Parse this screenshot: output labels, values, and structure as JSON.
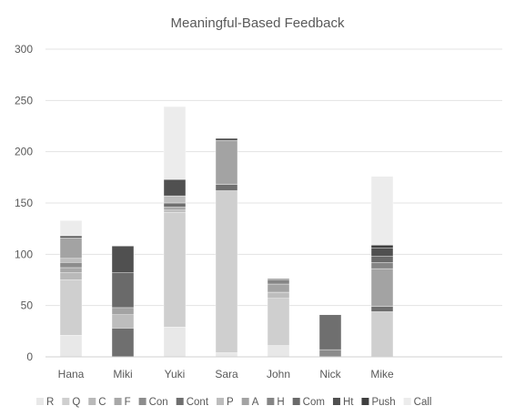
{
  "chart_data": {
    "type": "bar",
    "stacked": true,
    "title": "Meaningful-Based Feedback",
    "xlabel": "",
    "ylabel": "",
    "ylim": [
      0,
      300
    ],
    "yticks": [
      0,
      50,
      100,
      150,
      200,
      250,
      300
    ],
    "grid": true,
    "legend": "bottom",
    "categories": [
      "Hana",
      "Miki",
      "Yuki",
      "Sara",
      "John",
      "Nick",
      "Mike"
    ],
    "series": [
      {
        "name": "R",
        "color": "#e8e8e8",
        "values": [
          21,
          0,
          29,
          4,
          11,
          0,
          0
        ]
      },
      {
        "name": "Q",
        "color": "#cfcfcf",
        "values": [
          54,
          0,
          112,
          158,
          46,
          0,
          44
        ]
      },
      {
        "name": "C",
        "color": "#b9b9b9",
        "values": [
          7,
          0,
          2,
          0,
          0,
          0,
          0
        ]
      },
      {
        "name": "F",
        "color": "#a8a8a8",
        "values": [
          5,
          0,
          3,
          0,
          0,
          0,
          0
        ]
      },
      {
        "name": "Con",
        "color": "#8c8c8c",
        "values": [
          5,
          0,
          0,
          0,
          0,
          7,
          0
        ]
      },
      {
        "name": "Cont",
        "color": "#6f6f6f",
        "values": [
          0,
          28,
          4,
          6,
          0,
          34,
          5
        ]
      },
      {
        "name": "P",
        "color": "#bdbdbd",
        "values": [
          4,
          13,
          7,
          0,
          6,
          0,
          0
        ]
      },
      {
        "name": "A",
        "color": "#a3a3a3",
        "values": [
          20,
          7,
          0,
          43,
          8,
          0,
          37
        ]
      },
      {
        "name": "H",
        "color": "#858585",
        "values": [
          0,
          0,
          0,
          0,
          4,
          0,
          6
        ]
      },
      {
        "name": "Com",
        "color": "#6a6a6a",
        "values": [
          0,
          34,
          0,
          0,
          0,
          0,
          6
        ]
      },
      {
        "name": "Ht",
        "color": "#505050",
        "values": [
          2,
          26,
          16,
          2,
          1,
          0,
          8
        ]
      },
      {
        "name": "Push",
        "color": "#3f3f3f",
        "values": [
          0,
          0,
          0,
          0,
          0,
          0,
          3
        ]
      },
      {
        "name": "Call",
        "color": "#ececec",
        "values": [
          15,
          0,
          71,
          0,
          0,
          0,
          67
        ]
      }
    ]
  }
}
